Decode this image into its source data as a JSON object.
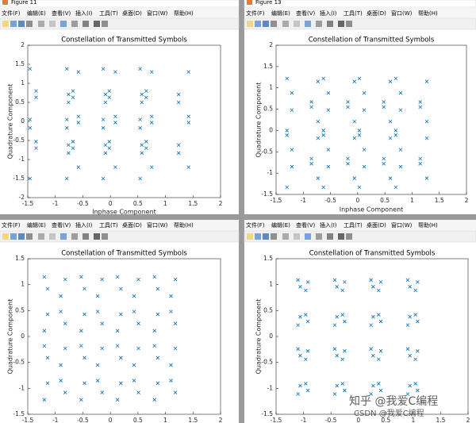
{
  "windows": [
    {
      "title": "Figure 11"
    },
    {
      "title": "Figure 13"
    }
  ],
  "menu": [
    "文件(F)",
    "编辑(E)",
    "查看(V)",
    "插入(I)",
    "工具(T)",
    "桌面(D)",
    "窗口(W)",
    "帮助(H)"
  ],
  "watermarks": [
    "知乎 @我爱C编程",
    "CSDN @我爱C编程"
  ],
  "chart_data": [
    {
      "type": "scatter",
      "title": "Constellation of Transmitted Symbols",
      "xlabel": "Inphase Component",
      "ylabel": "Quadrature Component",
      "color": "#0072BD",
      "marker": "x",
      "xlim": [
        -1.5,
        2
      ],
      "xticks": [
        -1.5,
        -1,
        -0.5,
        0,
        0.5,
        1,
        1.5,
        2
      ],
      "ylim": [
        -2,
        2
      ],
      "yticks": [
        -2,
        -1.5,
        -1,
        -0.5,
        0,
        0.5,
        1,
        1.5,
        2
      ],
      "x": [
        -0.58,
        -1.46,
        -0.76,
        -1.35,
        0.09,
        -0.79,
        -0.09,
        -0.68,
        0.75,
        -0.13,
        0.57,
        -0.02,
        1.42,
        0.54,
        1.24,
        0.65,
        -1.35,
        -0.76,
        -1.46,
        -0.58,
        -0.68,
        -0.09,
        -0.79,
        0.09,
        -0.02,
        0.57,
        -0.13,
        0.75,
        0.65,
        1.24,
        0.54,
        1.42,
        -0.58,
        -1.46,
        -0.76,
        -1.35,
        0.09,
        -0.79,
        -0.09,
        -0.68,
        0.75,
        -0.13,
        0.57,
        -0.02,
        1.42,
        0.54,
        1.24,
        0.65,
        -1.35,
        -0.76,
        -1.46,
        -0.58,
        -0.68,
        -0.09,
        -0.79,
        0.09,
        -0.02,
        0.57,
        -0.13,
        0.75,
        0.65,
        1.24,
        0.54,
        1.42
      ],
      "values": [
        1.3,
        1.38,
        0.5,
        0.8,
        1.3,
        1.38,
        0.5,
        0.8,
        1.3,
        1.38,
        0.5,
        0.8,
        1.3,
        1.38,
        0.5,
        0.8,
        0.63,
        0.71,
        -0.17,
        0.13,
        0.63,
        0.71,
        -0.17,
        0.13,
        0.63,
        0.71,
        -0.17,
        0.13,
        0.63,
        0.71,
        -0.17,
        0.13,
        -0.03,
        0.05,
        -0.83,
        -0.53,
        -0.03,
        0.05,
        -0.83,
        -0.53,
        -0.03,
        0.05,
        -0.83,
        -0.53,
        -0.03,
        0.05,
        -0.83,
        -0.53,
        -0.7,
        -0.62,
        -1.5,
        -1.2,
        -0.7,
        -0.62,
        -1.5,
        -1.2,
        -0.7,
        -0.62,
        -1.5,
        -1.2,
        -0.7,
        -0.62,
        -1.5,
        -1.2
      ]
    },
    {
      "type": "scatter",
      "title": "Constellation of Transmitted Symbols",
      "xlabel": "Inphase Component",
      "ylabel": "Quadrature Component",
      "color": "#0072BD",
      "marker": "x",
      "xlim": [
        -1.5,
        2
      ],
      "xticks": [
        -1.5,
        -1,
        -0.5,
        0,
        0.5,
        1,
        1.5,
        2
      ],
      "ylim": [
        -1.5,
        2
      ],
      "yticks": [
        -1.5,
        -1,
        -0.5,
        0,
        0.5,
        1,
        1.5,
        2
      ],
      "x": [
        -0.73,
        -1.3,
        -0.85,
        -1.21,
        -0.06,
        -0.63,
        -0.18,
        -0.54,
        0.6,
        0.03,
        0.48,
        0.12,
        1.27,
        0.7,
        1.15,
        0.79,
        -1.21,
        -0.85,
        -1.3,
        -0.73,
        -0.54,
        -0.18,
        -0.63,
        -0.06,
        0.12,
        0.48,
        0.03,
        0.6,
        0.79,
        1.15,
        0.7,
        1.27,
        -0.73,
        -1.3,
        -0.85,
        -1.21,
        -0.06,
        -0.63,
        -0.18,
        -0.54,
        0.6,
        0.03,
        0.48,
        0.12,
        1.27,
        0.7,
        1.15,
        0.79,
        -1.21,
        -0.85,
        -1.3,
        -0.73,
        -0.54,
        -0.18,
        -0.63,
        -0.06,
        0.12,
        0.48,
        0.03,
        0.6,
        0.79,
        1.15,
        0.7,
        1.27
      ],
      "values": [
        1.15,
        1.22,
        0.67,
        0.88,
        1.15,
        1.22,
        0.67,
        0.88,
        1.15,
        1.22,
        0.67,
        0.88,
        1.15,
        1.22,
        0.67,
        0.88,
        0.48,
        0.55,
        0.0,
        0.21,
        0.48,
        0.55,
        0.0,
        0.21,
        0.48,
        0.55,
        0.0,
        0.21,
        0.48,
        0.55,
        0.0,
        0.21,
        -0.18,
        -0.11,
        -0.66,
        -0.45,
        -0.18,
        -0.11,
        -0.66,
        -0.45,
        -0.18,
        -0.11,
        -0.66,
        -0.45,
        -0.18,
        -0.11,
        -0.66,
        -0.45,
        -0.85,
        -0.78,
        -1.33,
        -1.12,
        -0.85,
        -0.78,
        -1.33,
        -1.12,
        -0.85,
        -0.78,
        -1.33,
        -1.12,
        -0.85,
        -0.78,
        -1.33,
        -1.12
      ]
    },
    {
      "type": "scatter",
      "title": "Constellation of Transmitted Symbols",
      "ylabel": "Quadrature Component",
      "color": "#0072BD",
      "marker": "x",
      "xlim": [
        -1.5,
        2
      ],
      "xticks": [
        -1.5,
        -1,
        -0.5,
        0,
        0.5,
        1,
        1.5,
        2
      ],
      "ylim": [
        -1.5,
        1.5
      ],
      "yticks": [
        -1.5,
        -1,
        -0.5,
        0,
        0.5,
        1,
        1.5
      ],
      "x": [
        -0.82,
        -1.2,
        -0.9,
        -1.14,
        -0.15,
        -0.53,
        -0.23,
        -0.47,
        0.51,
        0.13,
        0.43,
        0.19,
        1.18,
        0.8,
        1.1,
        0.86,
        -1.14,
        -0.9,
        -1.2,
        -0.82,
        -0.47,
        -0.23,
        -0.53,
        -0.15,
        0.19,
        0.43,
        0.13,
        0.51,
        0.86,
        1.1,
        0.8,
        1.18,
        -0.82,
        -1.2,
        -0.9,
        -1.14,
        -0.15,
        -0.53,
        -0.23,
        -0.47,
        0.51,
        0.13,
        0.43,
        0.19,
        1.18,
        0.8,
        1.1,
        0.86,
        -1.14,
        -0.9,
        -1.2,
        -0.82,
        -0.47,
        -0.23,
        -0.53,
        -0.15,
        0.19,
        0.43,
        0.13,
        0.51,
        0.86,
        1.1,
        0.8,
        1.18
      ],
      "values": [
        1.1,
        1.15,
        0.78,
        0.92,
        1.1,
        1.15,
        0.78,
        0.92,
        1.1,
        1.15,
        0.78,
        0.92,
        1.1,
        1.15,
        0.78,
        0.92,
        0.43,
        0.48,
        0.11,
        0.25,
        0.43,
        0.48,
        0.11,
        0.25,
        0.43,
        0.48,
        0.11,
        0.25,
        0.43,
        0.48,
        0.11,
        0.25,
        -0.23,
        -0.18,
        -0.55,
        -0.41,
        -0.23,
        -0.18,
        -0.55,
        -0.41,
        -0.23,
        -0.18,
        -0.55,
        -0.41,
        -0.23,
        -0.18,
        -0.55,
        -0.41,
        -0.9,
        -0.85,
        -1.22,
        -1.08,
        -0.9,
        -0.85,
        -1.22,
        -1.08,
        -0.9,
        -0.85,
        -1.22,
        -1.08,
        -0.9,
        -0.85,
        -1.22,
        -1.08
      ]
    },
    {
      "type": "scatter",
      "title": "Constellation of Transmitted Symbols",
      "ylabel": "Quadrature Component",
      "color": "#0072BD",
      "marker": "x",
      "xlim": [
        -1.5,
        2
      ],
      "xticks": [
        -1.5,
        -1,
        -0.5,
        0,
        0.5,
        1,
        1.5,
        2
      ],
      "ylim": [
        -1.5,
        1.5
      ],
      "yticks": [
        -1.5,
        -1,
        -0.5,
        0,
        0.5,
        1,
        1.5
      ],
      "x": [
        -0.92,
        -1.1,
        -0.96,
        -1.06,
        -0.25,
        -0.43,
        -0.29,
        -0.39,
        0.41,
        0.23,
        0.37,
        0.27,
        1.08,
        0.9,
        1.04,
        0.94,
        -1.06,
        -0.96,
        -1.1,
        -0.92,
        -0.39,
        -0.29,
        -0.43,
        -0.25,
        0.27,
        0.37,
        0.23,
        0.41,
        0.94,
        1.04,
        0.9,
        1.08,
        -0.92,
        -1.1,
        -0.96,
        -1.06,
        -0.25,
        -0.43,
        -0.29,
        -0.39,
        0.41,
        0.23,
        0.37,
        0.27,
        1.08,
        0.9,
        1.04,
        0.94,
        -1.06,
        -0.96,
        -1.1,
        -0.92,
        -0.39,
        -0.29,
        -0.43,
        -0.25,
        0.27,
        0.37,
        0.23,
        0.41,
        0.94,
        1.04,
        0.9,
        1.08
      ],
      "values": [
        1.05,
        1.09,
        0.89,
        0.96,
        1.05,
        1.09,
        0.89,
        0.96,
        1.05,
        1.09,
        0.89,
        0.96,
        1.05,
        1.09,
        0.89,
        0.96,
        0.38,
        0.42,
        0.22,
        0.29,
        0.38,
        0.42,
        0.22,
        0.29,
        0.38,
        0.42,
        0.22,
        0.29,
        0.38,
        0.42,
        0.22,
        0.29,
        -0.28,
        -0.24,
        -0.44,
        -0.37,
        -0.28,
        -0.24,
        -0.44,
        -0.37,
        -0.28,
        -0.24,
        -0.44,
        -0.37,
        -0.28,
        -0.24,
        -0.44,
        -0.37,
        -0.95,
        -0.91,
        -1.11,
        -1.04,
        -0.95,
        -0.91,
        -1.11,
        -1.04,
        -0.95,
        -0.91,
        -1.11,
        -1.04,
        -0.95,
        -0.91,
        -1.11,
        -1.04
      ]
    }
  ]
}
